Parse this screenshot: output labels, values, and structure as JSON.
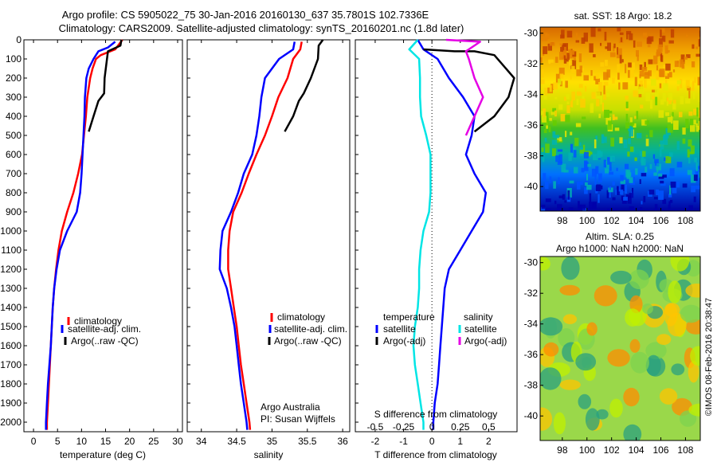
{
  "title_line1": "Argo profile: CS 5905022_75 30-Jan-2016 20160130_637 35.7801S 102.7336E",
  "title_line2": "Climatology: CARS2009. Satellite-adjusted climatology: synTS_20160201.nc (1.8d later)",
  "credit_line1": "Argo Australia",
  "credit_line2": "PI: Susan Wijffels",
  "watermark": "©IMOS 08-Feb-2016 20:38:47",
  "colors": {
    "climatology": "#ff0000",
    "satellite": "#0000ff",
    "argo": "#000000",
    "s_satellite": "#00e5e5",
    "s_argo": "#e500e5"
  },
  "chart_data": [
    {
      "type": "line",
      "xlabel": "temperature (deg C)",
      "ylabel": "",
      "xlim": [
        -2,
        31
      ],
      "ylim": [
        2050,
        0
      ],
      "xticks": [
        "0",
        "5",
        "10",
        "15",
        "20",
        "25",
        "30"
      ],
      "yticks": [
        "0",
        "100",
        "200",
        "300",
        "400",
        "500",
        "600",
        "700",
        "800",
        "900",
        "1000",
        "1100",
        "1200",
        "1300",
        "1400",
        "1500",
        "1600",
        "1700",
        "1800",
        "1900",
        "2000"
      ],
      "legend": [
        "climatology",
        "satellite-adj. clim.",
        "Argo(..raw -QC)"
      ],
      "legend_position": "lower-center",
      "series": [
        {
          "name": "climatology",
          "points": [
            [
              18.5,
              0
            ],
            [
              17,
              50
            ],
            [
              14,
              80
            ],
            [
              13,
              100
            ],
            [
              12.3,
              150
            ],
            [
              11.8,
              200
            ],
            [
              11.2,
              300
            ],
            [
              10.9,
              400
            ],
            [
              10.5,
              500
            ],
            [
              10.1,
              600
            ],
            [
              9.3,
              700
            ],
            [
              8.3,
              800
            ],
            [
              7,
              900
            ],
            [
              5.9,
              1000
            ],
            [
              5.2,
              1100
            ],
            [
              4.7,
              1200
            ],
            [
              4.3,
              1300
            ],
            [
              4,
              1400
            ],
            [
              3.8,
              1500
            ],
            [
              3.6,
              1600
            ],
            [
              3.4,
              1700
            ],
            [
              3.2,
              1800
            ],
            [
              3.0,
              1900
            ],
            [
              2.8,
              2000
            ],
            [
              2.8,
              2040
            ]
          ]
        },
        {
          "name": "satellite-adj. clim.",
          "points": [
            [
              17,
              10
            ],
            [
              15.5,
              40
            ],
            [
              13.5,
              60
            ],
            [
              12.5,
              100
            ],
            [
              11.5,
              150
            ],
            [
              11,
              200
            ],
            [
              10.7,
              300
            ],
            [
              10.6,
              400
            ],
            [
              10.4,
              500
            ],
            [
              10.2,
              600
            ],
            [
              10,
              700
            ],
            [
              9.7,
              800
            ],
            [
              9,
              900
            ],
            [
              7,
              1000
            ],
            [
              5.5,
              1100
            ],
            [
              4.8,
              1200
            ],
            [
              4.3,
              1300
            ],
            [
              4,
              1400
            ],
            [
              3.8,
              1500
            ],
            [
              3.6,
              1600
            ],
            [
              3.3,
              1700
            ],
            [
              3.0,
              1800
            ],
            [
              2.8,
              1900
            ],
            [
              2.6,
              2000
            ],
            [
              2.6,
              2040
            ]
          ]
        },
        {
          "name": "Argo(..raw -QC)",
          "points": [
            [
              18.3,
              0
            ],
            [
              18.1,
              30
            ],
            [
              15.5,
              60
            ],
            [
              15.3,
              100
            ],
            [
              14.8,
              200
            ],
            [
              14.7,
              280
            ],
            [
              13.5,
              320
            ],
            [
              12.5,
              400
            ],
            [
              11.5,
              480
            ]
          ]
        }
      ]
    },
    {
      "type": "line",
      "xlabel": "salinity",
      "xlim": [
        33.8,
        36.1
      ],
      "ylim": [
        2050,
        0
      ],
      "xticks": [
        "34",
        "34.5",
        "35",
        "35.5",
        "36"
      ],
      "legend": [
        "climatology",
        "satellite-adj. clim.",
        "Argo(..raw -QC)"
      ],
      "legend_position": "lower-center",
      "series": [
        {
          "name": "climatology",
          "points": [
            [
              35.42,
              10
            ],
            [
              35.4,
              50
            ],
            [
              35.3,
              100
            ],
            [
              35.22,
              200
            ],
            [
              35.09,
              300
            ],
            [
              35.0,
              400
            ],
            [
              34.9,
              500
            ],
            [
              34.78,
              600
            ],
            [
              34.67,
              700
            ],
            [
              34.57,
              800
            ],
            [
              34.45,
              900
            ],
            [
              34.4,
              1000
            ],
            [
              34.38,
              1100
            ],
            [
              34.38,
              1200
            ],
            [
              34.42,
              1300
            ],
            [
              34.46,
              1400
            ],
            [
              34.5,
              1500
            ],
            [
              34.53,
              1600
            ],
            [
              34.56,
              1700
            ],
            [
              34.6,
              1800
            ],
            [
              34.64,
              1900
            ],
            [
              34.68,
              2000
            ],
            [
              34.69,
              2040
            ]
          ]
        },
        {
          "name": "satellite-adj. clim.",
          "points": [
            [
              35.32,
              10
            ],
            [
              35.3,
              50
            ],
            [
              35.1,
              100
            ],
            [
              34.9,
              200
            ],
            [
              34.85,
              300
            ],
            [
              34.82,
              400
            ],
            [
              34.78,
              500
            ],
            [
              34.72,
              600
            ],
            [
              34.6,
              700
            ],
            [
              34.52,
              800
            ],
            [
              34.42,
              900
            ],
            [
              34.3,
              1000
            ],
            [
              34.27,
              1100
            ],
            [
              34.26,
              1200
            ],
            [
              34.36,
              1300
            ],
            [
              34.42,
              1400
            ],
            [
              34.47,
              1500
            ],
            [
              34.5,
              1600
            ],
            [
              34.53,
              1700
            ],
            [
              34.56,
              1800
            ],
            [
              34.6,
              1900
            ],
            [
              34.64,
              2000
            ],
            [
              34.65,
              2040
            ]
          ]
        },
        {
          "name": "Argo(..raw -QC)",
          "points": [
            [
              35.72,
              0
            ],
            [
              35.66,
              30
            ],
            [
              35.65,
              100
            ],
            [
              35.55,
              200
            ],
            [
              35.45,
              280
            ],
            [
              35.38,
              320
            ],
            [
              35.3,
              400
            ],
            [
              35.18,
              480
            ]
          ]
        }
      ]
    },
    {
      "type": "line",
      "xlabel": "T difference from climatology",
      "xlabel2": "S difference from climatology",
      "xlim": [
        -2.7,
        3.0
      ],
      "ylim": [
        2050,
        0
      ],
      "xticks": [
        "-2",
        "-1",
        "0",
        "1",
        "2"
      ],
      "x2ticks": [
        "-0.5",
        "-0.25",
        "0",
        "0.25",
        "0.5"
      ],
      "x2lim": [
        -0.675,
        0.75
      ],
      "legend_title_left": "temperature",
      "legend_title_right": "salinity",
      "legend": [
        "satellite",
        "Argo(-adj)",
        "satellite",
        "Argo(-adj)"
      ],
      "legend_position": "lower-center",
      "series": [
        {
          "name": "T satellite",
          "points": [
            [
              -0.5,
              0
            ],
            [
              -0.3,
              50
            ],
            [
              0.2,
              100
            ],
            [
              0.6,
              200
            ],
            [
              1.1,
              300
            ],
            [
              1.5,
              400
            ],
            [
              1.4,
              500
            ],
            [
              1.2,
              600
            ],
            [
              1.5,
              700
            ],
            [
              1.9,
              800
            ],
            [
              1.8,
              900
            ],
            [
              1.4,
              1000
            ],
            [
              1.0,
              1100
            ],
            [
              0.6,
              1200
            ],
            [
              0.45,
              1300
            ],
            [
              0.4,
              1400
            ],
            [
              0.35,
              1500
            ],
            [
              0.3,
              1600
            ],
            [
              0.25,
              1700
            ],
            [
              0.2,
              1800
            ],
            [
              0.1,
              1900
            ],
            [
              0.05,
              2000
            ],
            [
              0.05,
              2040
            ]
          ]
        },
        {
          "name": "T Argo(-adj)",
          "points": [
            [
              -0.3,
              50
            ],
            [
              0.8,
              60
            ],
            [
              1.5,
              60
            ],
            [
              2.2,
              80
            ],
            [
              2.9,
              200
            ],
            [
              2.7,
              300
            ],
            [
              2.2,
              400
            ],
            [
              1.5,
              480
            ]
          ]
        },
        {
          "name": "S satellite",
          "points": [
            [
              -0.5,
              0
            ],
            [
              -0.8,
              50
            ],
            [
              -0.45,
              100
            ],
            [
              -0.42,
              200
            ],
            [
              -0.42,
              300
            ],
            [
              -0.38,
              400
            ],
            [
              -0.2,
              500
            ],
            [
              -0.05,
              600
            ],
            [
              -0.05,
              700
            ],
            [
              -0.05,
              800
            ],
            [
              -0.1,
              900
            ],
            [
              -0.3,
              1000
            ],
            [
              -0.4,
              1100
            ],
            [
              -0.45,
              1200
            ],
            [
              -0.45,
              1300
            ],
            [
              -0.5,
              1400
            ],
            [
              -0.6,
              1500
            ],
            [
              -0.65,
              1600
            ],
            [
              -0.6,
              1700
            ],
            [
              -0.5,
              1800
            ],
            [
              -0.4,
              1900
            ],
            [
              -0.3,
              2000
            ],
            [
              -0.3,
              2040
            ]
          ]
        },
        {
          "name": "S Argo(-adj)",
          "points": [
            [
              0.5,
              0
            ],
            [
              1.7,
              10
            ],
            [
              1.2,
              60
            ],
            [
              1.3,
              100
            ],
            [
              1.5,
              200
            ],
            [
              1.8,
              300
            ],
            [
              1.5,
              400
            ],
            [
              1.2,
              500
            ]
          ]
        }
      ]
    },
    {
      "type": "heatmap",
      "title": "sat. SST: 18 Argo: 18.2",
      "xlim": [
        96.2,
        109.2
      ],
      "ylim": [
        -41.6,
        -29.6
      ],
      "xticks": [
        "98",
        "100",
        "102",
        "104",
        "106",
        "108"
      ],
      "yticks": [
        "-30",
        "-32",
        "-34",
        "-36",
        "-38",
        "-40"
      ],
      "colormap": [
        "#c04000",
        "#e68000",
        "#ffcc00",
        "#e5e500",
        "#66cc00",
        "#00b3b3",
        "#0055ff",
        "#0000aa"
      ]
    },
    {
      "type": "heatmap",
      "title": "Altim. SLA: 0.25",
      "subtitle": "Argo h1000: NaN h2000: NaN",
      "xlim": [
        96.2,
        109.2
      ],
      "ylim": [
        -41.6,
        -29.6
      ],
      "xticks": [
        "98",
        "100",
        "102",
        "104",
        "106",
        "108"
      ],
      "yticks": [
        "-30",
        "-32",
        "-34",
        "-36",
        "-38",
        "-40"
      ],
      "colormap": [
        "#2aa080",
        "#7ed34f",
        "#c0f000",
        "#ffc400",
        "#ff8c00"
      ]
    }
  ]
}
